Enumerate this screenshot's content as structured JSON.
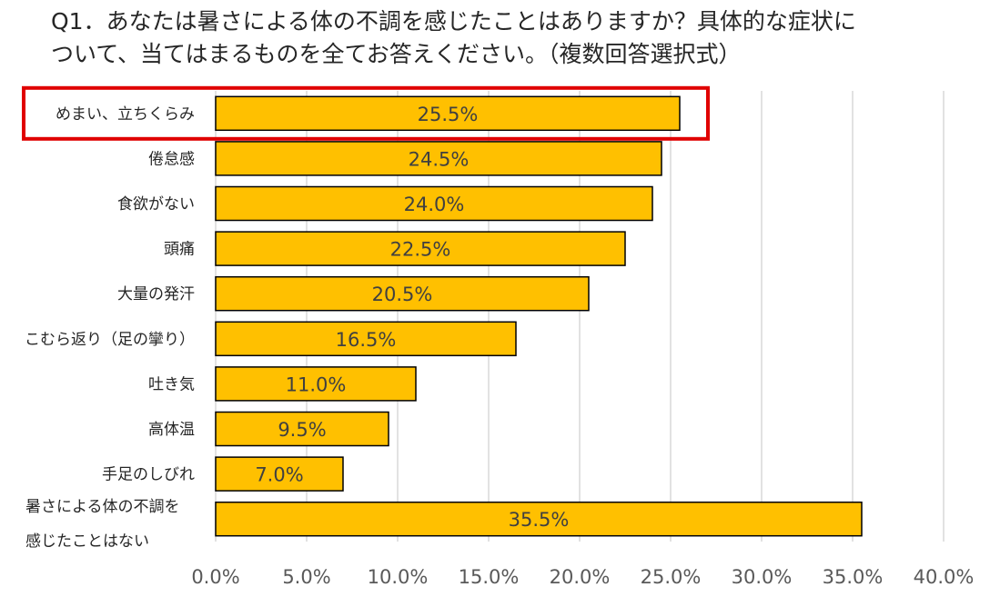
{
  "title": {
    "line1": "Q1．あなたは暑さによる体の不調を感じたことはありますか？具体的な症状に",
    "line2": "ついて、当てはまるものを全てお答えください。（複数回答選択式）"
  },
  "chart_data": {
    "type": "bar",
    "orientation": "horizontal",
    "title": "Q1．あなたは暑さによる体の不調を感じたことはありますか？具体的な症状について、当てはまるものを全てお答えください。（複数回答選択式）",
    "categories": [
      [
        "めまい、立ちくらみ"
      ],
      [
        "倦怠感"
      ],
      [
        "食欲がない"
      ],
      [
        "頭痛"
      ],
      [
        "大量の発汗"
      ],
      [
        "こむら返り（足の攣り）"
      ],
      [
        "吐き気"
      ],
      [
        "高体温"
      ],
      [
        "手足のしびれ"
      ],
      [
        "暑さによる体の不調を",
        "感じたことはない"
      ]
    ],
    "values": [
      25.5,
      24.5,
      24.0,
      22.5,
      20.5,
      16.5,
      11.0,
      9.5,
      7.0,
      35.5
    ],
    "value_labels": [
      "25.5%",
      "24.5%",
      "24.0%",
      "22.5%",
      "20.5%",
      "16.5%",
      "11.0%",
      "9.5%",
      "7.0%",
      "35.5%"
    ],
    "xlim": [
      0,
      40
    ],
    "ticks": [
      0,
      5,
      10,
      15,
      20,
      25,
      30,
      35,
      40
    ],
    "tick_labels": [
      "0.0%",
      "5.0%",
      "10.0%",
      "15.0%",
      "20.0%",
      "25.0%",
      "30.0%",
      "35.0%",
      "40.0%"
    ],
    "grid": true,
    "highlighted_category_index": 0,
    "bar_color": "#FFC000",
    "bar_edge_color": "#000000",
    "highlight_color": "#E00000",
    "grid_color": "#D9D9D9"
  }
}
